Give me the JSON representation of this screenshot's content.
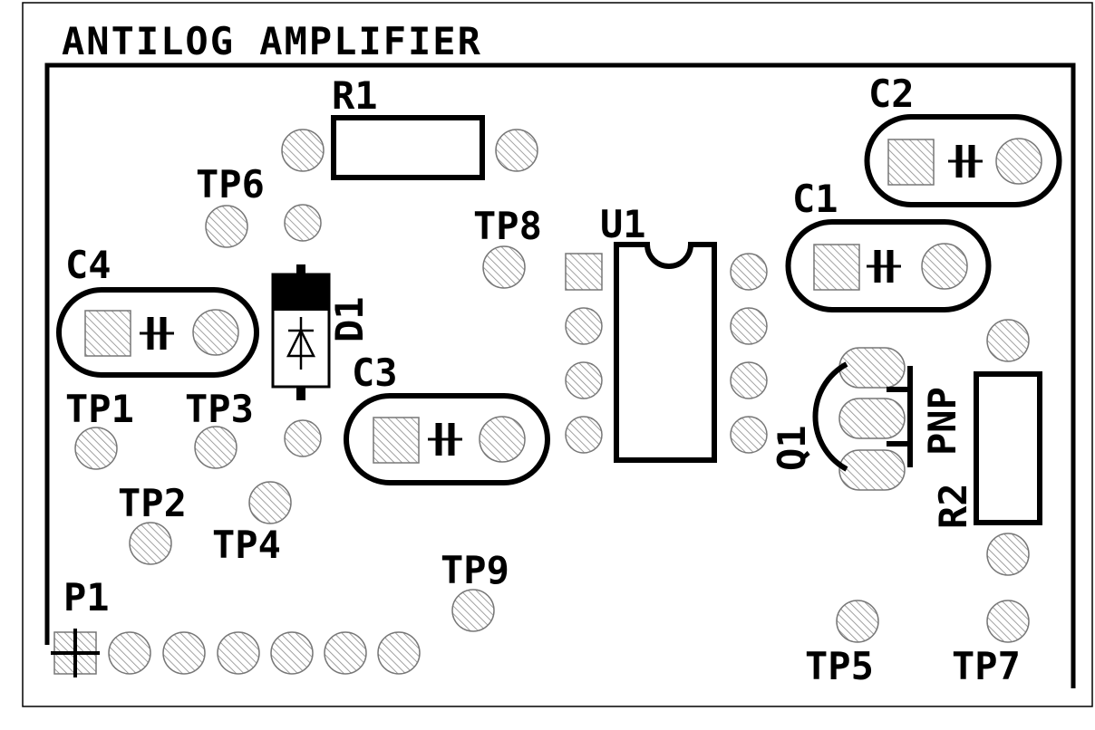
{
  "title": "ANTILOG AMPLIFIER",
  "components": {
    "r1": "R1",
    "r2": "R2",
    "c1": "C1",
    "c2": "C2",
    "c3": "C3",
    "c4": "C4",
    "d1": "D1",
    "u1": "U1",
    "q1": "Q1",
    "q1_type": "PNP",
    "p1": "P1"
  },
  "test_points": {
    "tp1": "TP1",
    "tp2": "TP2",
    "tp3": "TP3",
    "tp4": "TP4",
    "tp5": "TP5",
    "tp6": "TP6",
    "tp7": "TP7",
    "tp8": "TP8",
    "tp9": "TP9"
  }
}
